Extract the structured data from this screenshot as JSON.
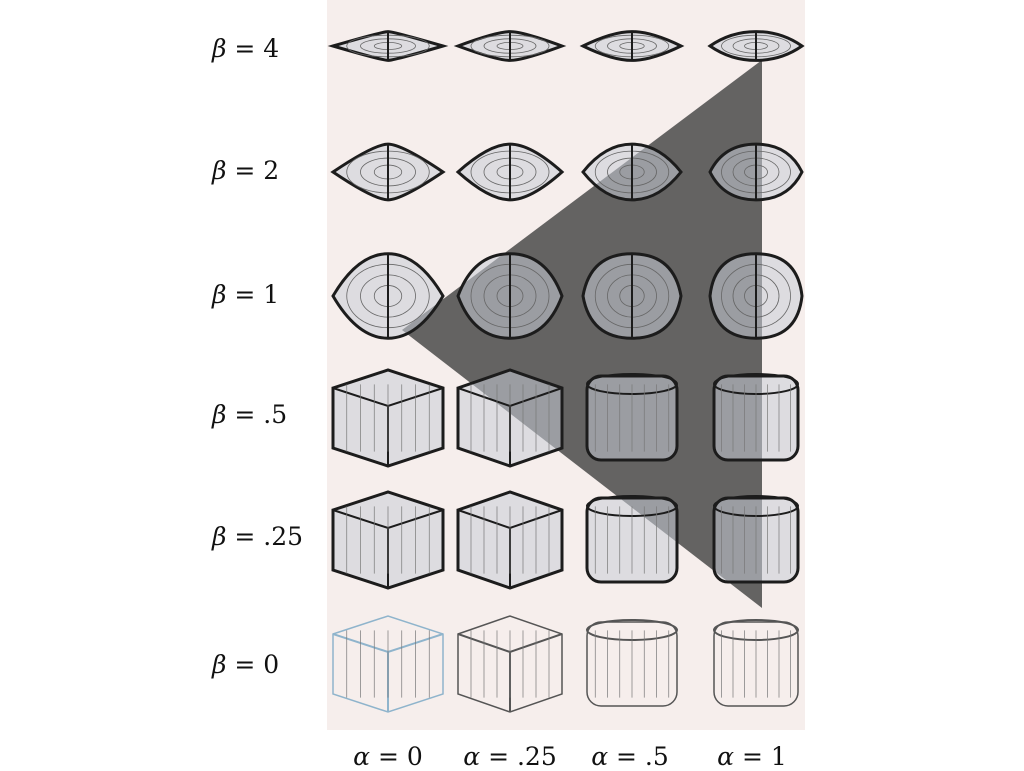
{
  "rows": [
    {
      "label_sym": "β",
      "label_val": " = 4"
    },
    {
      "label_sym": "β",
      "label_val": " = 2"
    },
    {
      "label_sym": "β",
      "label_val": " = 1"
    },
    {
      "label_sym": "β",
      "label_val": " = .5"
    },
    {
      "label_sym": "β",
      "label_val": " = .25"
    },
    {
      "label_sym": "β",
      "label_val": " = 0"
    }
  ],
  "columns": [
    {
      "label_sym": "α",
      "label_val": " = 0"
    },
    {
      "label_sym": "α",
      "label_val": " = .25"
    },
    {
      "label_sym": "α",
      "label_val": " = .5"
    },
    {
      "label_sym": "α",
      "label_val": " = 1"
    }
  ],
  "colors": {
    "panel_bg": "#f6eeec",
    "shade": "#4a4a4a",
    "wire_dark": "#1c1c1c",
    "wire_light": "#8fb4cc"
  }
}
